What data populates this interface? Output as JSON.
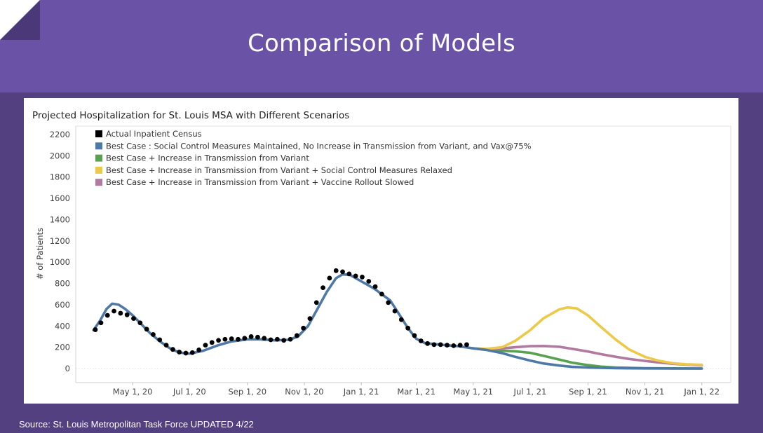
{
  "slide": {
    "title": "Comparison of Models",
    "source": "Source: St. Louis Metropolitan Task Force UPDATED 4/22"
  },
  "chart_data": {
    "type": "line",
    "title": "Projected Hospitalization for St. Louis MSA with Different Scenarios",
    "xlabel": "",
    "ylabel": "# of Patients",
    "ylim": [
      0,
      2200
    ],
    "yticks": [
      0,
      200,
      400,
      600,
      800,
      1000,
      1200,
      1400,
      1600,
      1800,
      2000,
      2200
    ],
    "xlim": [
      "2020-03-01",
      "2022-02-01"
    ],
    "xticks": [
      {
        "date": "2020-05-01",
        "label": "May 1, 20"
      },
      {
        "date": "2020-07-01",
        "label": "Jul 1, 20"
      },
      {
        "date": "2020-09-01",
        "label": "Sep 1, 20"
      },
      {
        "date": "2020-11-01",
        "label": "Nov 1, 20"
      },
      {
        "date": "2021-01-01",
        "label": "Jan 1, 21"
      },
      {
        "date": "2021-03-01",
        "label": "Mar 1, 21"
      },
      {
        "date": "2021-05-01",
        "label": "May 1, 21"
      },
      {
        "date": "2021-07-01",
        "label": "Jul 1, 21"
      },
      {
        "date": "2021-09-01",
        "label": "Sep 1, 21"
      },
      {
        "date": "2021-11-01",
        "label": "Nov 1, 21"
      },
      {
        "date": "2022-01-01",
        "label": "Jan 1, 22"
      }
    ],
    "grid": false,
    "legend_position": "top-left",
    "series": [
      {
        "name": "Actual Inpatient Census",
        "color": "#000000",
        "style": "dots",
        "points": [
          [
            "2020-03-22",
            365
          ],
          [
            "2020-03-28",
            430
          ],
          [
            "2020-04-04",
            500
          ],
          [
            "2020-04-11",
            540
          ],
          [
            "2020-04-18",
            520
          ],
          [
            "2020-04-25",
            505
          ],
          [
            "2020-05-02",
            470
          ],
          [
            "2020-05-09",
            430
          ],
          [
            "2020-05-16",
            370
          ],
          [
            "2020-05-23",
            320
          ],
          [
            "2020-05-30",
            270
          ],
          [
            "2020-06-06",
            220
          ],
          [
            "2020-06-13",
            180
          ],
          [
            "2020-06-20",
            155
          ],
          [
            "2020-06-27",
            145
          ],
          [
            "2020-07-04",
            150
          ],
          [
            "2020-07-11",
            175
          ],
          [
            "2020-07-18",
            220
          ],
          [
            "2020-07-25",
            245
          ],
          [
            "2020-08-01",
            265
          ],
          [
            "2020-08-08",
            275
          ],
          [
            "2020-08-15",
            280
          ],
          [
            "2020-08-22",
            275
          ],
          [
            "2020-08-29",
            285
          ],
          [
            "2020-09-05",
            300
          ],
          [
            "2020-09-12",
            295
          ],
          [
            "2020-09-19",
            285
          ],
          [
            "2020-09-26",
            270
          ],
          [
            "2020-10-03",
            275
          ],
          [
            "2020-10-10",
            265
          ],
          [
            "2020-10-17",
            275
          ],
          [
            "2020-10-24",
            310
          ],
          [
            "2020-10-31",
            380
          ],
          [
            "2020-11-07",
            470
          ],
          [
            "2020-11-14",
            620
          ],
          [
            "2020-11-21",
            760
          ],
          [
            "2020-11-28",
            850
          ],
          [
            "2020-12-05",
            920
          ],
          [
            "2020-12-12",
            910
          ],
          [
            "2020-12-19",
            890
          ],
          [
            "2020-12-26",
            870
          ],
          [
            "2021-01-02",
            860
          ],
          [
            "2021-01-09",
            820
          ],
          [
            "2021-01-16",
            770
          ],
          [
            "2021-01-23",
            700
          ],
          [
            "2021-01-30",
            620
          ],
          [
            "2021-02-06",
            540
          ],
          [
            "2021-02-13",
            460
          ],
          [
            "2021-02-20",
            380
          ],
          [
            "2021-02-27",
            310
          ],
          [
            "2021-03-06",
            260
          ],
          [
            "2021-03-13",
            235
          ],
          [
            "2021-03-20",
            225
          ],
          [
            "2021-03-27",
            225
          ],
          [
            "2021-04-03",
            220
          ],
          [
            "2021-04-10",
            215
          ],
          [
            "2021-04-17",
            220
          ],
          [
            "2021-04-24",
            225
          ]
        ]
      },
      {
        "name": "Best Case : Social Control Measures Maintained, No Increase in Transmission from Variant, and Vax@75%",
        "color": "#4e79a7",
        "style": "line",
        "points": [
          [
            "2020-03-20",
            360
          ],
          [
            "2020-03-27",
            450
          ],
          [
            "2020-04-03",
            560
          ],
          [
            "2020-04-09",
            610
          ],
          [
            "2020-04-16",
            600
          ],
          [
            "2020-04-23",
            560
          ],
          [
            "2020-05-01",
            500
          ],
          [
            "2020-05-10",
            420
          ],
          [
            "2020-05-20",
            330
          ],
          [
            "2020-05-31",
            250
          ],
          [
            "2020-06-10",
            190
          ],
          [
            "2020-06-20",
            150
          ],
          [
            "2020-07-01",
            140
          ],
          [
            "2020-07-15",
            165
          ],
          [
            "2020-08-01",
            220
          ],
          [
            "2020-08-15",
            255
          ],
          [
            "2020-09-01",
            275
          ],
          [
            "2020-09-15",
            275
          ],
          [
            "2020-10-01",
            265
          ],
          [
            "2020-10-15",
            270
          ],
          [
            "2020-10-25",
            300
          ],
          [
            "2020-11-05",
            400
          ],
          [
            "2020-11-15",
            560
          ],
          [
            "2020-11-25",
            720
          ],
          [
            "2020-12-05",
            850
          ],
          [
            "2020-12-12",
            885
          ],
          [
            "2020-12-20",
            880
          ],
          [
            "2021-01-01",
            820
          ],
          [
            "2021-01-15",
            750
          ],
          [
            "2021-02-01",
            640
          ],
          [
            "2021-02-10",
            520
          ],
          [
            "2021-02-20",
            380
          ],
          [
            "2021-03-01",
            280
          ],
          [
            "2021-03-10",
            240
          ],
          [
            "2021-03-25",
            225
          ],
          [
            "2021-04-15",
            210
          ],
          [
            "2021-05-01",
            190
          ],
          [
            "2021-05-15",
            175
          ],
          [
            "2021-06-01",
            145
          ],
          [
            "2021-06-15",
            110
          ],
          [
            "2021-07-01",
            75
          ],
          [
            "2021-07-15",
            48
          ],
          [
            "2021-08-01",
            28
          ],
          [
            "2021-08-15",
            16
          ],
          [
            "2021-09-01",
            9
          ],
          [
            "2021-10-01",
            3
          ],
          [
            "2021-11-01",
            1
          ],
          [
            "2021-12-01",
            0
          ],
          [
            "2022-01-01",
            0
          ]
        ]
      },
      {
        "name": "Best Case + Increase in Transmission from Variant",
        "color": "#59a14f",
        "style": "line",
        "points": [
          [
            "2021-05-01",
            190
          ],
          [
            "2021-05-15",
            178
          ],
          [
            "2021-06-01",
            168
          ],
          [
            "2021-06-15",
            162
          ],
          [
            "2021-07-01",
            148
          ],
          [
            "2021-07-15",
            120
          ],
          [
            "2021-08-01",
            85
          ],
          [
            "2021-08-15",
            55
          ],
          [
            "2021-09-01",
            32
          ],
          [
            "2021-09-15",
            18
          ],
          [
            "2021-10-01",
            9
          ],
          [
            "2021-11-01",
            3
          ],
          [
            "2021-12-01",
            1
          ],
          [
            "2022-01-01",
            0
          ]
        ]
      },
      {
        "name": "Best Case + Increase in Transmission from Variant + Social Control Measures Relaxed",
        "color": "#edc948",
        "style": "line",
        "points": [
          [
            "2021-05-01",
            190
          ],
          [
            "2021-05-15",
            185
          ],
          [
            "2021-06-01",
            200
          ],
          [
            "2021-06-15",
            260
          ],
          [
            "2021-07-01",
            360
          ],
          [
            "2021-07-15",
            470
          ],
          [
            "2021-08-01",
            555
          ],
          [
            "2021-08-10",
            575
          ],
          [
            "2021-08-20",
            565
          ],
          [
            "2021-09-01",
            500
          ],
          [
            "2021-09-15",
            390
          ],
          [
            "2021-10-01",
            270
          ],
          [
            "2021-10-15",
            180
          ],
          [
            "2021-11-01",
            110
          ],
          [
            "2021-11-15",
            75
          ],
          [
            "2021-12-01",
            50
          ],
          [
            "2021-12-15",
            40
          ],
          [
            "2022-01-01",
            35
          ]
        ]
      },
      {
        "name": "Best Case + Increase in Transmission from Variant + Vaccine Rollout Slowed",
        "color": "#b07aa1",
        "style": "line",
        "points": [
          [
            "2021-05-01",
            190
          ],
          [
            "2021-05-15",
            182
          ],
          [
            "2021-06-01",
            190
          ],
          [
            "2021-06-15",
            200
          ],
          [
            "2021-07-01",
            210
          ],
          [
            "2021-07-15",
            212
          ],
          [
            "2021-08-01",
            205
          ],
          [
            "2021-08-15",
            185
          ],
          [
            "2021-09-01",
            160
          ],
          [
            "2021-09-15",
            135
          ],
          [
            "2021-10-01",
            110
          ],
          [
            "2021-10-15",
            90
          ],
          [
            "2021-11-01",
            72
          ],
          [
            "2021-11-15",
            58
          ],
          [
            "2021-12-01",
            45
          ],
          [
            "2021-12-15",
            36
          ],
          [
            "2022-01-01",
            30
          ]
        ]
      }
    ]
  }
}
